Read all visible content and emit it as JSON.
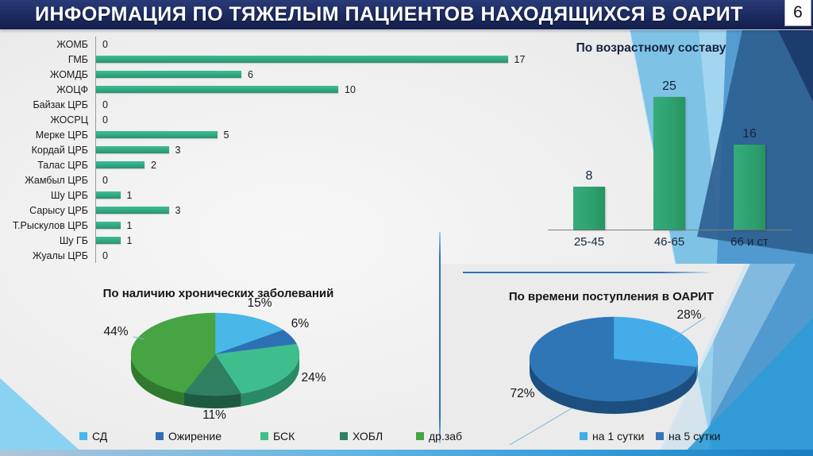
{
  "header": {
    "title": "ИНФОРМАЦИЯ ПО ТЯЖЕЛЫМ ПАЦИЕНТОВ НАХОДЯЩИХСЯ В ОАРИТ",
    "page_number": "6"
  },
  "chart_data": [
    {
      "id": "patients-by-hospital",
      "type": "bar",
      "orientation": "horizontal",
      "title": "",
      "categories": [
        "ЖОМБ",
        "ГМБ",
        "ЖОМДБ",
        "ЖОЦФ",
        "Байзак ЦРБ",
        "ЖОСРЦ",
        "Мерке ЦРБ",
        "Кордай ЦРБ",
        "Талас ЦРБ",
        "Жамбыл ЦРБ",
        "Шу ЦРБ",
        "Сарысу ЦРБ",
        "Т.Рыскулов ЦРБ",
        "Шу ГБ",
        "Жуалы ЦРБ"
      ],
      "values": [
        0,
        17,
        6,
        10,
        0,
        0,
        5,
        3,
        2,
        0,
        1,
        3,
        1,
        1,
        0
      ],
      "xlim": [
        0,
        17
      ],
      "bar_color": "#31A27D",
      "grid": false,
      "value_labels": true
    },
    {
      "id": "patients-by-age",
      "type": "bar",
      "orientation": "vertical",
      "title": "По возрастному составу",
      "categories": [
        "25-45",
        "46-65",
        "66 и ст"
      ],
      "values": [
        8,
        25,
        16
      ],
      "ylim": [
        0,
        25
      ],
      "bar_color": "#2EA06F",
      "grid": false,
      "value_labels": true
    },
    {
      "id": "chronic-diseases",
      "type": "pie",
      "title": "По наличию хронических заболеваний",
      "slices": [
        {
          "label": "СД",
          "value": 15,
          "pct_label": "15%",
          "color": "#49B7E8",
          "side_color": "#2E85B5"
        },
        {
          "label": "Ожирение",
          "value": 6,
          "pct_label": "6%",
          "color": "#2E70B4",
          "side_color": "#1E5083"
        },
        {
          "label": "БСК",
          "value": 24,
          "pct_label": "24%",
          "color": "#3EBE8D",
          "side_color": "#2A8A65"
        },
        {
          "label": "ХОБЛ",
          "value": 11,
          "pct_label": "11%",
          "color": "#2E8060",
          "side_color": "#1E5A42"
        },
        {
          "label": "др.заб",
          "value": 44,
          "pct_label": "44%",
          "color": "#46A443",
          "side_color": "#30792E"
        }
      ],
      "legend_position": "bottom"
    },
    {
      "id": "admission-time",
      "type": "pie",
      "title": "По времени поступления в ОАРИТ",
      "slices": [
        {
          "label": "на 1 сутки",
          "value": 28,
          "pct_label": "28%",
          "color": "#44ACE8",
          "side_color": "#2C7FB8"
        },
        {
          "label": "на 5 сутки",
          "value": 72,
          "pct_label": "72%",
          "color": "#2F76B7",
          "side_color": "#1C4F7F"
        }
      ],
      "legend": [
        {
          "label": "на 1 сутки",
          "color": "#41AEE4"
        },
        {
          "label": "на 5 сутки",
          "color": "#3A77B7"
        }
      ],
      "legend_position": "bottom"
    }
  ]
}
